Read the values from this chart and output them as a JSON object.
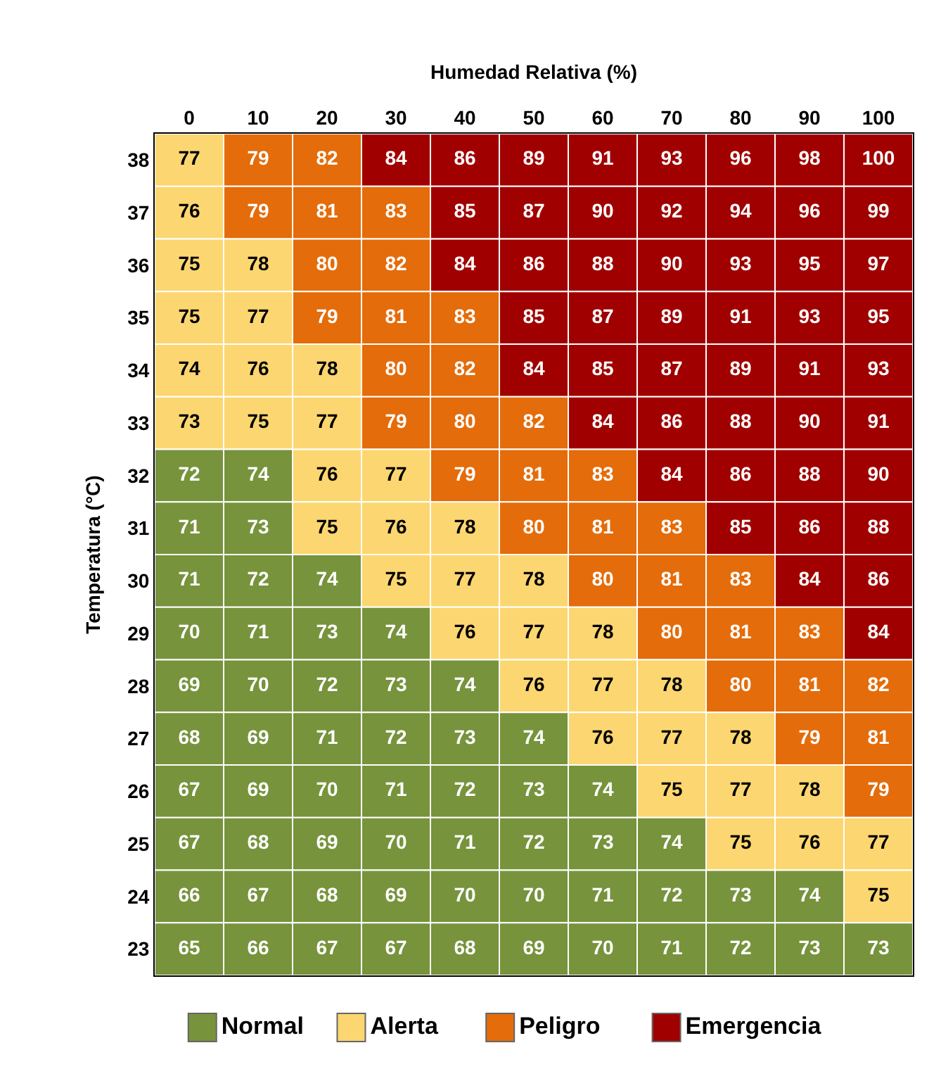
{
  "chart_data": [
    {
      "type": "heatmap",
      "xlabel": "Humedad Relativa (%)",
      "ylabel": "Temperatura (°C)",
      "categories": [
        "0",
        "10",
        "20",
        "30",
        "40",
        "50",
        "60",
        "70",
        "80",
        "90",
        "100"
      ],
      "y_categories": [
        "38",
        "37",
        "36",
        "35",
        "34",
        "33",
        "32",
        "31",
        "30",
        "29",
        "28",
        "27",
        "26",
        "25",
        "24",
        "23"
      ],
      "cells": [
        [
          77,
          79,
          82,
          84,
          86,
          89,
          91,
          93,
          96,
          98,
          100
        ],
        [
          76,
          79,
          81,
          83,
          85,
          87,
          90,
          92,
          94,
          96,
          99
        ],
        [
          75,
          78,
          80,
          82,
          84,
          86,
          88,
          90,
          93,
          95,
          97
        ],
        [
          75,
          77,
          79,
          81,
          83,
          85,
          87,
          89,
          91,
          93,
          95
        ],
        [
          74,
          76,
          78,
          80,
          82,
          84,
          85,
          87,
          89,
          91,
          93
        ],
        [
          73,
          75,
          77,
          79,
          80,
          82,
          84,
          86,
          88,
          90,
          91
        ],
        [
          72,
          74,
          76,
          77,
          79,
          81,
          83,
          84,
          86,
          88,
          90
        ],
        [
          71,
          73,
          75,
          76,
          78,
          80,
          81,
          83,
          85,
          86,
          88
        ],
        [
          71,
          72,
          74,
          75,
          77,
          78,
          80,
          81,
          83,
          84,
          86
        ],
        [
          70,
          71,
          73,
          74,
          76,
          77,
          78,
          80,
          81,
          83,
          84
        ],
        [
          69,
          70,
          72,
          73,
          74,
          76,
          77,
          78,
          80,
          81,
          82
        ],
        [
          68,
          69,
          71,
          72,
          73,
          74,
          76,
          77,
          78,
          79,
          81
        ],
        [
          67,
          69,
          70,
          71,
          72,
          73,
          74,
          75,
          77,
          78,
          79
        ],
        [
          67,
          68,
          69,
          70,
          71,
          72,
          73,
          74,
          75,
          76,
          77
        ],
        [
          66,
          67,
          68,
          69,
          70,
          70,
          71,
          72,
          73,
          74,
          75
        ],
        [
          65,
          66,
          67,
          67,
          68,
          69,
          70,
          71,
          72,
          73,
          73
        ]
      ],
      "colors": [
        [
          "#fcd670",
          "#e46c0a",
          "#e46c0a",
          "#a00000",
          "#a00000",
          "#a00000",
          "#a00000",
          "#a00000",
          "#a00000",
          "#a00000",
          "#a00000"
        ],
        [
          "#fcd670",
          "#e46c0a",
          "#e46c0a",
          "#e46c0a",
          "#a00000",
          "#a00000",
          "#a00000",
          "#a00000",
          "#a00000",
          "#a00000",
          "#a00000"
        ],
        [
          "#fcd670",
          "#fcd670",
          "#e46c0a",
          "#e46c0a",
          "#a00000",
          "#a00000",
          "#a00000",
          "#a00000",
          "#a00000",
          "#a00000",
          "#a00000"
        ],
        [
          "#fcd670",
          "#fcd670",
          "#e46c0a",
          "#e46c0a",
          "#e46c0a",
          "#a00000",
          "#a00000",
          "#a00000",
          "#a00000",
          "#a00000",
          "#a00000"
        ],
        [
          "#fcd670",
          "#fcd670",
          "#fcd670",
          "#e46c0a",
          "#e46c0a",
          "#a00000",
          "#a00000",
          "#a00000",
          "#a00000",
          "#a00000",
          "#a00000"
        ],
        [
          "#fcd670",
          "#fcd670",
          "#fcd670",
          "#e46c0a",
          "#e46c0a",
          "#e46c0a",
          "#a00000",
          "#a00000",
          "#a00000",
          "#a00000",
          "#a00000"
        ],
        [
          "#77933c",
          "#77933c",
          "#fcd670",
          "#fcd670",
          "#e46c0a",
          "#e46c0a",
          "#e46c0a",
          "#a00000",
          "#a00000",
          "#a00000",
          "#a00000"
        ],
        [
          "#77933c",
          "#77933c",
          "#fcd670",
          "#fcd670",
          "#fcd670",
          "#e46c0a",
          "#e46c0a",
          "#e46c0a",
          "#a00000",
          "#a00000",
          "#a00000"
        ],
        [
          "#77933c",
          "#77933c",
          "#77933c",
          "#fcd670",
          "#fcd670",
          "#fcd670",
          "#e46c0a",
          "#e46c0a",
          "#e46c0a",
          "#a00000",
          "#a00000"
        ],
        [
          "#77933c",
          "#77933c",
          "#77933c",
          "#77933c",
          "#fcd670",
          "#fcd670",
          "#fcd670",
          "#e46c0a",
          "#e46c0a",
          "#e46c0a",
          "#a00000"
        ],
        [
          "#77933c",
          "#77933c",
          "#77933c",
          "#77933c",
          "#77933c",
          "#fcd670",
          "#fcd670",
          "#fcd670",
          "#e46c0a",
          "#e46c0a",
          "#e46c0a"
        ],
        [
          "#77933c",
          "#77933c",
          "#77933c",
          "#77933c",
          "#77933c",
          "#77933c",
          "#fcd670",
          "#fcd670",
          "#fcd670",
          "#e46c0a",
          "#e46c0a"
        ],
        [
          "#77933c",
          "#77933c",
          "#77933c",
          "#77933c",
          "#77933c",
          "#77933c",
          "#77933c",
          "#fcd670",
          "#fcd670",
          "#fcd670",
          "#e46c0a"
        ],
        [
          "#77933c",
          "#77933c",
          "#77933c",
          "#77933c",
          "#77933c",
          "#77933c",
          "#77933c",
          "#77933c",
          "#fcd670",
          "#fcd670",
          "#fcd670"
        ],
        [
          "#77933c",
          "#77933c",
          "#77933c",
          "#77933c",
          "#77933c",
          "#77933c",
          "#77933c",
          "#77933c",
          "#77933c",
          "#77933c",
          "#fcd670"
        ],
        [
          "#77933c",
          "#77933c",
          "#77933c",
          "#77933c",
          "#77933c",
          "#77933c",
          "#77933c",
          "#77933c",
          "#77933c",
          "#77933c",
          "#77933c"
        ]
      ],
      "data_labels": true
    },
    {
      "type": "other",
      "categories": [
        "Normal",
        "Alerta",
        "Peligro",
        "Emergencia"
      ],
      "colors": [
        "#77933c",
        "#fcd670",
        "#e46c0a",
        "#a00000"
      ]
    }
  ]
}
